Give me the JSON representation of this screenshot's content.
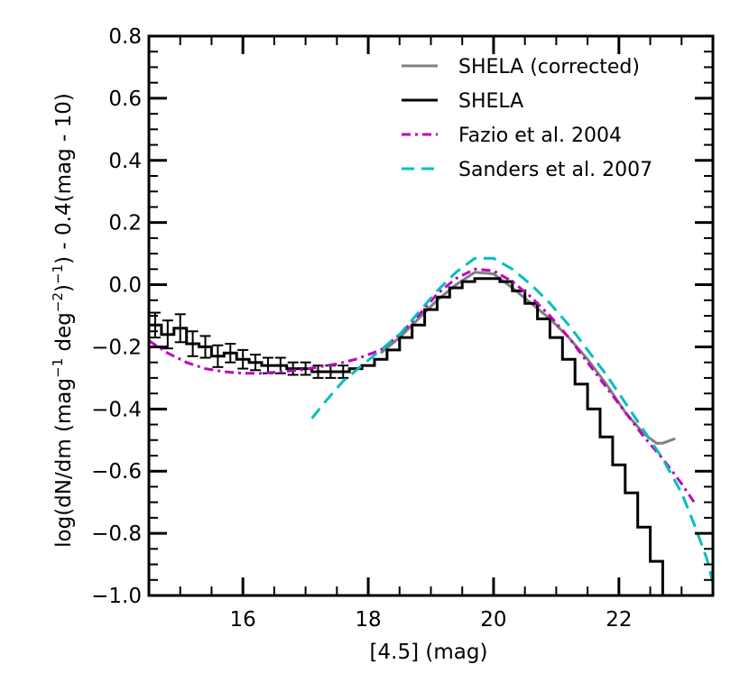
{
  "chart_data": {
    "type": "line",
    "xlabel": "[4.5] (mag)",
    "ylabel_parts": [
      "log(dN/dm  (mag",
      "−1",
      " deg",
      "−2",
      ")",
      "−1",
      ") - 0.4(mag - 10)"
    ],
    "xlim": [
      14.5,
      23.5
    ],
    "ylim": [
      -1.0,
      0.8
    ],
    "xticks": [
      16,
      18,
      20,
      22
    ],
    "xtick_labels": [
      "16",
      "18",
      "20",
      "22"
    ],
    "yticks": [
      -1.0,
      -0.8,
      -0.6,
      -0.4,
      -0.2,
      0.0,
      0.2,
      0.4,
      0.6,
      0.8
    ],
    "ytick_labels": [
      "−1.0",
      "−0.8",
      "−0.6",
      "−0.4",
      "−0.2",
      "0.0",
      "0.2",
      "0.4",
      "0.6",
      "0.8"
    ],
    "grid": false,
    "legend_position": "top-right",
    "series": [
      {
        "name": "SHELA (corrected)",
        "color": "#808080",
        "style": "solid",
        "x": [
          18.2,
          18.5,
          18.8,
          19.1,
          19.4,
          19.7,
          20.0,
          20.3,
          20.6,
          20.9,
          21.2,
          21.5,
          21.8,
          22.1,
          22.4,
          22.6,
          22.7,
          22.9
        ],
        "y": [
          -0.22,
          -0.17,
          -0.11,
          -0.05,
          0.0,
          0.04,
          0.035,
          -0.01,
          -0.06,
          -0.11,
          -0.17,
          -0.24,
          -0.32,
          -0.41,
          -0.48,
          -0.51,
          -0.51,
          -0.495
        ]
      },
      {
        "name": "SHELA",
        "color": "#000000",
        "style": "steps",
        "step_edges": [
          14.5,
          14.7,
          14.9,
          15.1,
          15.3,
          15.5,
          15.7,
          15.9,
          16.1,
          16.3,
          16.5,
          16.7,
          16.9,
          17.1,
          17.3,
          17.5,
          17.7,
          17.9,
          18.1,
          18.3,
          18.5,
          18.7,
          18.9,
          19.1,
          19.3,
          19.5,
          19.7,
          19.9,
          20.1,
          20.3,
          20.5,
          20.7,
          20.9,
          21.1,
          21.3,
          21.5,
          21.7,
          21.9,
          22.1,
          22.3,
          22.5,
          22.7,
          22.9
        ],
        "step_values": [
          -0.13,
          -0.16,
          -0.14,
          -0.19,
          -0.2,
          -0.23,
          -0.22,
          -0.24,
          -0.25,
          -0.26,
          -0.26,
          -0.27,
          -0.27,
          -0.28,
          -0.28,
          -0.28,
          -0.27,
          -0.26,
          -0.24,
          -0.21,
          -0.17,
          -0.13,
          -0.08,
          -0.04,
          -0.01,
          0.01,
          0.02,
          0.02,
          0.01,
          -0.02,
          -0.06,
          -0.11,
          -0.17,
          -0.24,
          -0.32,
          -0.4,
          -0.49,
          -0.58,
          -0.67,
          -0.78,
          -0.89,
          -1.0
        ],
        "errorbar_range": [
          14.5,
          17.7
        ],
        "errors": [
          0.04,
          0.045,
          0.045,
          0.04,
          0.035,
          0.035,
          0.03,
          0.03,
          0.025,
          0.025,
          0.025,
          0.02,
          0.02,
          0.02,
          0.02,
          0.02
        ]
      },
      {
        "name": "Fazio et al. 2004",
        "color": "#bf00bf",
        "style": "dashdot",
        "x": [
          14.5,
          14.8,
          15.1,
          15.4,
          15.7,
          16.0,
          16.3,
          16.6,
          16.9,
          17.2,
          17.5,
          17.8,
          18.2,
          18.5,
          18.8,
          19.1,
          19.4,
          19.7,
          20.0,
          20.3,
          20.6,
          20.9,
          21.2,
          21.5,
          21.8,
          22.1,
          22.4,
          22.7,
          23.0,
          23.2
        ],
        "y": [
          -0.18,
          -0.22,
          -0.25,
          -0.27,
          -0.28,
          -0.285,
          -0.285,
          -0.28,
          -0.275,
          -0.265,
          -0.255,
          -0.24,
          -0.21,
          -0.16,
          -0.1,
          -0.03,
          0.02,
          0.05,
          0.045,
          0.01,
          -0.04,
          -0.1,
          -0.17,
          -0.25,
          -0.33,
          -0.41,
          -0.49,
          -0.56,
          -0.64,
          -0.7
        ]
      },
      {
        "name": "Sanders et al. 2007",
        "color": "#00bfbf",
        "style": "dashed",
        "x": [
          17.1,
          17.3,
          17.6,
          17.9,
          18.2,
          18.5,
          18.8,
          19.1,
          19.4,
          19.7,
          20.0,
          20.3,
          20.6,
          20.9,
          21.2,
          21.5,
          21.8,
          22.1,
          22.4,
          22.7,
          23.0,
          23.2,
          23.4,
          23.5
        ],
        "y": [
          -0.43,
          -0.38,
          -0.31,
          -0.26,
          -0.21,
          -0.16,
          -0.09,
          -0.02,
          0.04,
          0.085,
          0.085,
          0.05,
          0.0,
          -0.06,
          -0.13,
          -0.21,
          -0.29,
          -0.38,
          -0.47,
          -0.56,
          -0.67,
          -0.77,
          -0.88,
          -0.96
        ]
      }
    ]
  }
}
